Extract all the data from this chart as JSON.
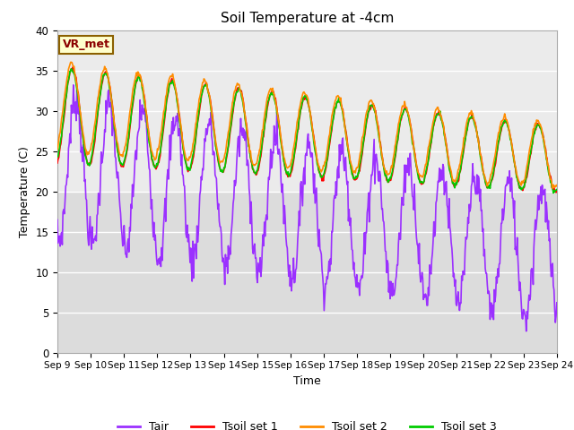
{
  "title": "Soil Temperature at -4cm",
  "xlabel": "Time",
  "ylabel": "Temperature (C)",
  "ylim": [
    0,
    40
  ],
  "colors": {
    "Tair": "#9B30FF",
    "Tsoil1": "#FF0000",
    "Tsoil2": "#FF8C00",
    "Tsoil3": "#00CC00"
  },
  "legend_labels": [
    "Tair",
    "Tsoil set 1",
    "Tsoil set 2",
    "Tsoil set 3"
  ],
  "annotation_text": "VR_met",
  "annotation_bg": "#FFFFCC",
  "annotation_border": "#8B6000",
  "bg_color": "#EBEBEB",
  "fig_bg": "#FFFFFF",
  "grid_color": "#FFFFFF",
  "line_width": 1.2,
  "num_days": 15,
  "x_tick_labels": [
    "Sep 9",
    "Sep 10",
    "Sep 11",
    "Sep 12",
    "Sep 13",
    "Sep 14",
    "Sep 15",
    "Sep 16",
    "Sep 17",
    "Sep 18",
    "Sep 19",
    "Sep 20",
    "Sep 21",
    "Sep 22",
    "Sep 23",
    "Sep 24"
  ]
}
